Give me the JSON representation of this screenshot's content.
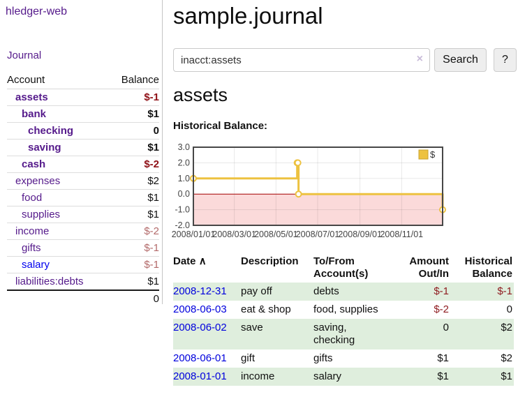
{
  "app": {
    "brand": "hledger-web",
    "nav_journal": "Journal"
  },
  "sidebar": {
    "headers": {
      "account": "Account",
      "balance": "Balance"
    },
    "accounts": [
      {
        "name": "assets",
        "balance": "$-1"
      },
      {
        "name": "bank",
        "balance": "$1"
      },
      {
        "name": "checking",
        "balance": "0"
      },
      {
        "name": "saving",
        "balance": "$1"
      },
      {
        "name": "cash",
        "balance": "$-2"
      },
      {
        "name": "expenses",
        "balance": "$2"
      },
      {
        "name": "food",
        "balance": "$1"
      },
      {
        "name": "supplies",
        "balance": "$1"
      },
      {
        "name": "income",
        "balance": "$-2"
      },
      {
        "name": "gifts",
        "balance": "$-1"
      },
      {
        "name": "salary",
        "balance": "$-1"
      },
      {
        "name": "liabilities:debts",
        "balance": "$1"
      }
    ],
    "total": "0"
  },
  "header": {
    "title": "sample.journal"
  },
  "search": {
    "value": "inacct:assets",
    "clear_icon": "×",
    "button_label": "Search",
    "help_label": "?"
  },
  "main": {
    "account_title": "assets",
    "chart_title": "Historical Balance:"
  },
  "chart_data": {
    "type": "line",
    "style": "step",
    "title": "Historical Balance:",
    "xlabel": "",
    "ylabel": "",
    "ylim": [
      -2,
      3
    ],
    "x_range_days": [
      0,
      365
    ],
    "grid": true,
    "legend_position": "top-right",
    "series": [
      {
        "name": "$",
        "color": "#edc240",
        "points": [
          {
            "date": "2008/01/01",
            "day": 0,
            "value": 1
          },
          {
            "date": "2008/06/01",
            "day": 152,
            "value": 2
          },
          {
            "date": "2008/06/02",
            "day": 153,
            "value": 2
          },
          {
            "date": "2008/06/03",
            "day": 154,
            "value": 0
          },
          {
            "date": "2008/12/31",
            "day": 365,
            "value": -1
          }
        ]
      }
    ],
    "x_ticks": [
      {
        "day": 0,
        "label": "2008/01/01"
      },
      {
        "day": 60,
        "label": "2008/03/01"
      },
      {
        "day": 121,
        "label": "2008/05/01"
      },
      {
        "day": 182,
        "label": "2008/07/01"
      },
      {
        "day": 244,
        "label": "2008/09/01"
      },
      {
        "day": 305,
        "label": "2008/11/01"
      }
    ],
    "y_ticks": [
      {
        "value": 3,
        "label": "3.0"
      },
      {
        "value": 2,
        "label": "2.0"
      },
      {
        "value": 1,
        "label": "1.0"
      },
      {
        "value": 0,
        "label": "0.0"
      },
      {
        "value": -1,
        "label": "-1.0"
      },
      {
        "value": -2,
        "label": "-2.0"
      }
    ],
    "negative_region_fill": "#fbdada",
    "zero_line_color": "#a40000",
    "legend": {
      "label": "$"
    }
  },
  "register": {
    "headers": {
      "date": "Date",
      "sort_icon": "∧",
      "description": "Description",
      "tofrom": "To/From Account(s)",
      "amount": "Amount Out/In",
      "balance": "Historical Balance"
    },
    "rows": [
      {
        "date": "2008-12-31",
        "description": "pay off",
        "accounts": "debts",
        "amount": "$-1",
        "balance": "$-1"
      },
      {
        "date": "2008-06-03",
        "description": "eat & shop",
        "accounts": "food, supplies",
        "amount": "$-2",
        "balance": "0"
      },
      {
        "date": "2008-06-02",
        "description": "save",
        "accounts": "saving, checking",
        "amount": "0",
        "balance": "$2"
      },
      {
        "date": "2008-06-01",
        "description": "gift",
        "accounts": "gifts",
        "amount": "$1",
        "balance": "$2"
      },
      {
        "date": "2008-01-01",
        "description": "income",
        "accounts": "salary",
        "amount": "$1",
        "balance": "$1"
      }
    ]
  },
  "colors": {
    "link_purple": "#551a8b",
    "link_blue": "#0000ee",
    "date_link_blue": "#0000dd",
    "negative_dark_red": "#8f1016",
    "negative_muted_red": "#b36a6a",
    "register_negative": "#8f1d21",
    "row_green": "#dfeedd",
    "chart_line_gold": "#edc240",
    "chart_negative_pink": "#fbdada",
    "chart_zero_line": "#a40000",
    "button_bg": "#eeeeee"
  }
}
